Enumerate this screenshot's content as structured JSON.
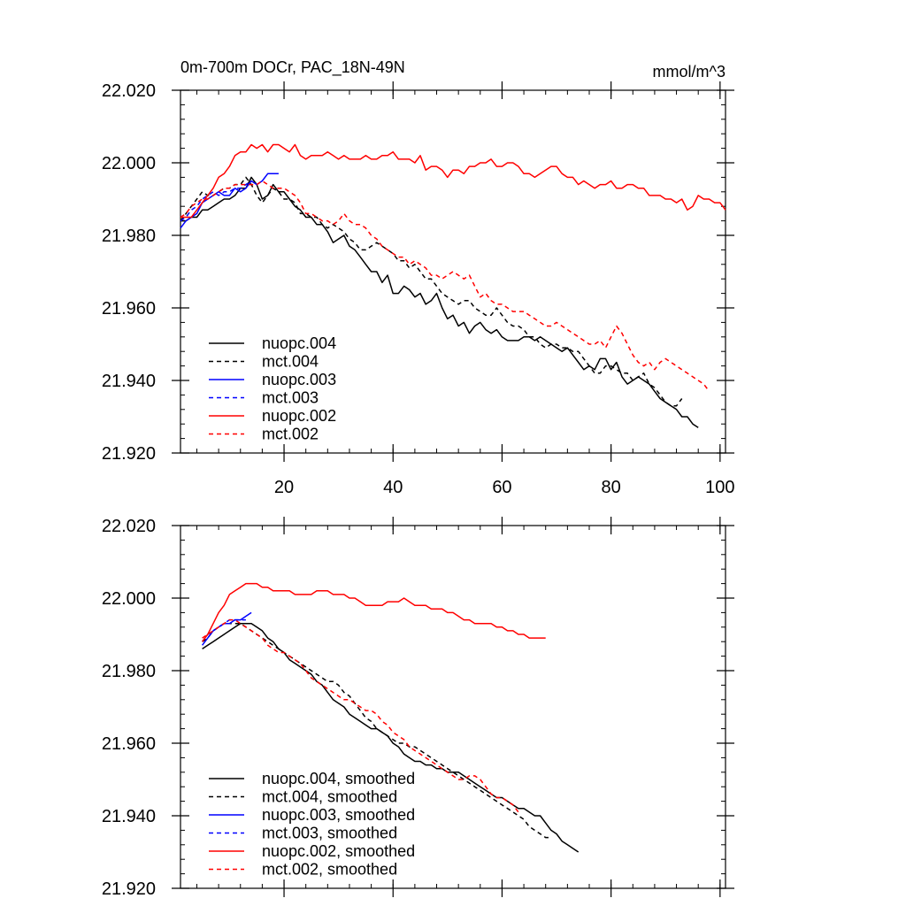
{
  "panel_top": {
    "title_left": "0m-700m DOCr, PAC_18N-49N",
    "title_right": "mmol/m^3"
  },
  "chart_data": [
    {
      "type": "line",
      "title": "0m-700m DOCr, PAC_18N-49N",
      "units_label": "mmol/m^3",
      "xlim": [
        1,
        101
      ],
      "ylim": [
        21.92,
        22.02
      ],
      "x_ticks": [
        20,
        40,
        60,
        80,
        100
      ],
      "y_ticks": [
        "21.920",
        "21.940",
        "21.960",
        "21.980",
        "22.000",
        "22.020"
      ],
      "legend_position": "bottom-left",
      "series": [
        {
          "name": "nuopc.004",
          "color": "#000000",
          "dash": "solid",
          "x_start": 1,
          "values": [
            21.984,
            21.984,
            21.985,
            21.985,
            21.987,
            21.987,
            21.988,
            21.989,
            21.99,
            21.99,
            21.991,
            21.993,
            21.993,
            21.996,
            21.994,
            21.99,
            21.991,
            21.994,
            21.992,
            21.992,
            21.99,
            21.988,
            21.987,
            21.985,
            21.985,
            21.983,
            21.983,
            21.981,
            21.978,
            21.979,
            21.98,
            21.977,
            21.976,
            21.974,
            21.972,
            21.97,
            21.97,
            21.967,
            21.969,
            21.964,
            21.964,
            21.966,
            21.965,
            21.963,
            21.964,
            21.961,
            21.962,
            21.964,
            21.96,
            21.957,
            21.958,
            21.955,
            21.956,
            21.953,
            21.955,
            21.956,
            21.954,
            21.953,
            21.954,
            21.952,
            21.951,
            21.951,
            21.951,
            21.952,
            21.952,
            21.951,
            21.952,
            21.951,
            21.95,
            21.949,
            21.948,
            21.949,
            21.947,
            21.945,
            21.943,
            21.944,
            21.943,
            21.946,
            21.946,
            21.943,
            21.945,
            21.941,
            21.939,
            21.94,
            21.941,
            21.94,
            21.939,
            21.937,
            21.935,
            21.934,
            21.933,
            21.932,
            21.93,
            21.93,
            21.928,
            21.927
          ]
        },
        {
          "name": "mct.004",
          "color": "#000000",
          "dash": "dashed",
          "x_start": 1,
          "values": [
            21.984,
            21.986,
            21.988,
            21.99,
            21.992,
            21.991,
            21.991,
            21.992,
            21.993,
            21.993,
            21.994,
            21.994,
            21.996,
            21.994,
            21.991,
            21.989,
            21.991,
            21.993,
            21.992,
            21.99,
            21.99,
            21.989,
            21.986,
            21.986,
            21.985,
            21.985,
            21.983,
            21.982,
            21.983,
            21.982,
            21.981,
            21.979,
            21.978,
            21.976,
            21.976,
            21.977,
            21.978,
            21.977,
            21.976,
            21.975,
            21.973,
            21.973,
            21.971,
            21.972,
            21.97,
            21.968,
            21.968,
            21.966,
            21.964,
            21.963,
            21.962,
            21.961,
            21.962,
            21.962,
            21.96,
            21.959,
            21.958,
            21.958,
            21.96,
            21.958,
            21.956,
            21.955,
            21.955,
            21.954,
            21.952,
            21.952,
            21.95,
            21.949,
            21.95,
            21.95,
            21.949,
            21.949,
            21.948,
            21.948,
            21.946,
            21.944,
            21.942,
            21.942,
            21.944,
            21.944,
            21.943,
            21.942,
            21.942,
            21.94,
            21.941,
            21.942,
            21.939,
            21.938,
            21.936,
            21.934,
            21.933,
            21.933,
            21.935
          ]
        },
        {
          "name": "nuopc.003",
          "color": "#0000ff",
          "dash": "solid",
          "x_start": 1,
          "values": [
            21.982,
            21.984,
            21.985,
            21.986,
            21.989,
            21.99,
            21.991,
            21.992,
            21.991,
            21.991,
            21.993,
            21.992,
            21.993,
            21.995,
            21.994,
            21.995,
            21.997,
            21.997,
            21.997
          ]
        },
        {
          "name": "mct.003",
          "color": "#0000ff",
          "dash": "dashed",
          "x_start": 1,
          "values": [
            21.984,
            21.985,
            21.987,
            21.988,
            21.99,
            21.991,
            21.992,
            21.991,
            21.992,
            21.992,
            21.993,
            21.993,
            21.994,
            21.995
          ]
        },
        {
          "name": "nuopc.002",
          "color": "#ff0000",
          "dash": "solid",
          "x_start": 1,
          "values": [
            21.985,
            21.985,
            21.985,
            21.987,
            21.989,
            21.991,
            21.993,
            21.996,
            21.997,
            21.999,
            22.002,
            22.003,
            22.003,
            22.005,
            22.004,
            22.005,
            22.003,
            22.005,
            22.005,
            22.004,
            22.003,
            22.005,
            22.002,
            22.001,
            22.002,
            22.002,
            22.002,
            22.003,
            22.002,
            22.001,
            22.002,
            22.001,
            22.001,
            22.001,
            22.002,
            22.001,
            22.001,
            22.002,
            22.002,
            22.003,
            22.001,
            22.001,
            22.001,
            22.0,
            22.002,
            21.998,
            21.999,
            21.999,
            21.998,
            21.996,
            21.998,
            21.998,
            21.997,
            21.999,
            21.999,
            22.0,
            22.0,
            22.001,
            21.999,
            21.999,
            22.0,
            22.0,
            21.999,
            21.997,
            21.997,
            21.996,
            21.997,
            21.998,
            21.999,
            21.999,
            21.997,
            21.996,
            21.996,
            21.994,
            21.995,
            21.994,
            21.993,
            21.994,
            21.994,
            21.995,
            21.993,
            21.993,
            21.994,
            21.994,
            21.993,
            21.993,
            21.991,
            21.991,
            21.991,
            21.99,
            21.99,
            21.989,
            21.99,
            21.987,
            21.988,
            21.991,
            21.99,
            21.99,
            21.989,
            21.989,
            21.987
          ]
        },
        {
          "name": "mct.002",
          "color": "#ff0000",
          "dash": "dashed",
          "x_start": 1,
          "values": [
            21.985,
            21.986,
            21.988,
            21.989,
            21.99,
            21.99,
            21.991,
            21.992,
            21.993,
            21.993,
            21.994,
            21.994,
            21.994,
            21.994,
            21.994,
            21.995,
            21.994,
            21.993,
            21.993,
            21.993,
            21.992,
            21.991,
            21.989,
            21.986,
            21.986,
            21.985,
            21.984,
            21.984,
            21.983,
            21.984,
            21.986,
            21.984,
            21.983,
            21.983,
            21.982,
            21.98,
            21.979,
            21.977,
            21.976,
            21.975,
            21.974,
            21.974,
            21.972,
            21.973,
            21.972,
            21.971,
            21.969,
            21.969,
            21.968,
            21.969,
            21.97,
            21.969,
            21.968,
            21.969,
            21.966,
            21.963,
            21.964,
            21.962,
            21.961,
            21.961,
            21.96,
            21.959,
            21.959,
            21.959,
            21.958,
            21.957,
            21.956,
            21.955,
            21.955,
            21.956,
            21.955,
            21.954,
            21.953,
            21.952,
            21.951,
            21.95,
            21.95,
            21.951,
            21.949,
            21.952,
            21.955,
            21.953,
            21.95,
            21.947,
            21.945,
            21.944,
            21.945,
            21.943,
            21.945,
            21.946,
            21.945,
            21.944,
            21.943,
            21.942,
            21.941,
            21.94,
            21.939,
            21.937
          ]
        }
      ]
    },
    {
      "type": "line",
      "xlim": [
        1,
        101
      ],
      "ylim": [
        21.92,
        22.02
      ],
      "y_ticks": [
        "21.920",
        "21.940",
        "21.960",
        "21.980",
        "22.000",
        "22.020"
      ],
      "legend_position": "bottom-left",
      "series": [
        {
          "name": "nuopc.004, smoothed",
          "color": "#000000",
          "dash": "solid",
          "x_start": 5,
          "values": [
            21.986,
            21.987,
            21.988,
            21.989,
            21.99,
            21.991,
            21.992,
            21.993,
            21.993,
            21.993,
            21.992,
            21.991,
            21.989,
            21.988,
            21.986,
            21.985,
            21.983,
            21.982,
            21.981,
            21.98,
            21.979,
            21.977,
            21.976,
            21.974,
            21.972,
            21.971,
            21.97,
            21.968,
            21.967,
            21.966,
            21.965,
            21.964,
            21.964,
            21.963,
            21.962,
            21.96,
            21.959,
            21.957,
            21.956,
            21.955,
            21.955,
            21.954,
            21.954,
            21.953,
            21.953,
            21.952,
            21.952,
            21.952,
            21.951,
            21.95,
            21.949,
            21.948,
            21.947,
            21.946,
            21.945,
            21.945,
            21.944,
            21.943,
            21.942,
            21.942,
            21.941,
            21.94,
            21.94,
            21.938,
            21.936,
            21.935,
            21.933,
            21.932,
            21.931,
            21.93
          ]
        },
        {
          "name": "mct.004, smoothed",
          "color": "#000000",
          "dash": "dashed",
          "x_start": 5,
          "values": [
            21.988,
            21.989,
            21.991,
            21.992,
            21.993,
            21.993,
            21.993,
            21.993,
            21.992,
            21.991,
            21.99,
            21.989,
            21.988,
            21.987,
            21.986,
            21.985,
            21.984,
            21.983,
            21.982,
            21.981,
            21.98,
            21.979,
            21.978,
            21.977,
            21.977,
            21.976,
            21.974,
            21.973,
            21.971,
            21.969,
            21.967,
            21.966,
            21.964,
            21.963,
            21.962,
            21.961,
            21.96,
            21.96,
            21.959,
            21.959,
            21.958,
            21.957,
            21.956,
            21.955,
            21.954,
            21.953,
            21.952,
            21.951,
            21.95,
            21.949,
            21.948,
            21.947,
            21.946,
            21.945,
            21.944,
            21.943,
            21.942,
            21.941,
            21.94,
            21.939,
            21.937,
            21.936,
            21.935,
            21.934,
            21.934
          ]
        },
        {
          "name": "nuopc.003, smoothed",
          "color": "#0000ff",
          "dash": "solid",
          "x_start": 5,
          "values": [
            21.987,
            21.989,
            21.991,
            21.992,
            21.993,
            21.993,
            21.994,
            21.994,
            21.995,
            21.996
          ]
        },
        {
          "name": "mct.003, smoothed",
          "color": "#0000ff",
          "dash": "dashed",
          "x_start": 5,
          "values": [
            21.988,
            21.99,
            21.991,
            21.992,
            21.993,
            21.994,
            21.994,
            21.994,
            21.994
          ]
        },
        {
          "name": "nuopc.002, smoothed",
          "color": "#ff0000",
          "dash": "solid",
          "x_start": 5,
          "values": [
            21.988,
            21.99,
            21.993,
            21.996,
            21.998,
            22.001,
            22.002,
            22.003,
            22.004,
            22.004,
            22.004,
            22.003,
            22.003,
            22.002,
            22.002,
            22.002,
            22.002,
            22.001,
            22.001,
            22.001,
            22.001,
            22.002,
            22.002,
            22.002,
            22.001,
            22.001,
            22.001,
            22.0,
            22.0,
            21.999,
            21.998,
            21.998,
            21.998,
            21.998,
            21.999,
            21.999,
            21.999,
            22.0,
            21.999,
            21.998,
            21.998,
            21.998,
            21.997,
            21.997,
            21.997,
            21.996,
            21.996,
            21.995,
            21.994,
            21.994,
            21.993,
            21.993,
            21.993,
            21.993,
            21.992,
            21.992,
            21.991,
            21.991,
            21.99,
            21.99,
            21.989,
            21.989,
            21.989,
            21.989
          ]
        },
        {
          "name": "mct.002, smoothed",
          "color": "#ff0000",
          "dash": "dashed",
          "x_start": 5,
          "values": [
            21.989,
            21.99,
            21.991,
            21.992,
            21.993,
            21.994,
            21.994,
            21.993,
            21.992,
            21.991,
            21.99,
            21.989,
            21.987,
            21.986,
            21.985,
            21.985,
            21.984,
            21.983,
            21.982,
            21.98,
            21.978,
            21.977,
            21.976,
            21.975,
            21.974,
            21.973,
            21.972,
            21.972,
            21.971,
            21.97,
            21.969,
            21.969,
            21.968,
            21.966,
            21.965,
            21.963,
            21.962,
            21.961,
            21.959,
            21.958,
            21.957,
            21.956,
            21.955,
            21.954,
            21.953,
            21.952,
            21.951,
            21.95,
            21.95,
            21.951,
            21.951,
            21.95,
            21.948,
            21.946,
            21.945,
            21.945,
            21.944,
            21.943,
            21.941
          ]
        }
      ]
    }
  ]
}
